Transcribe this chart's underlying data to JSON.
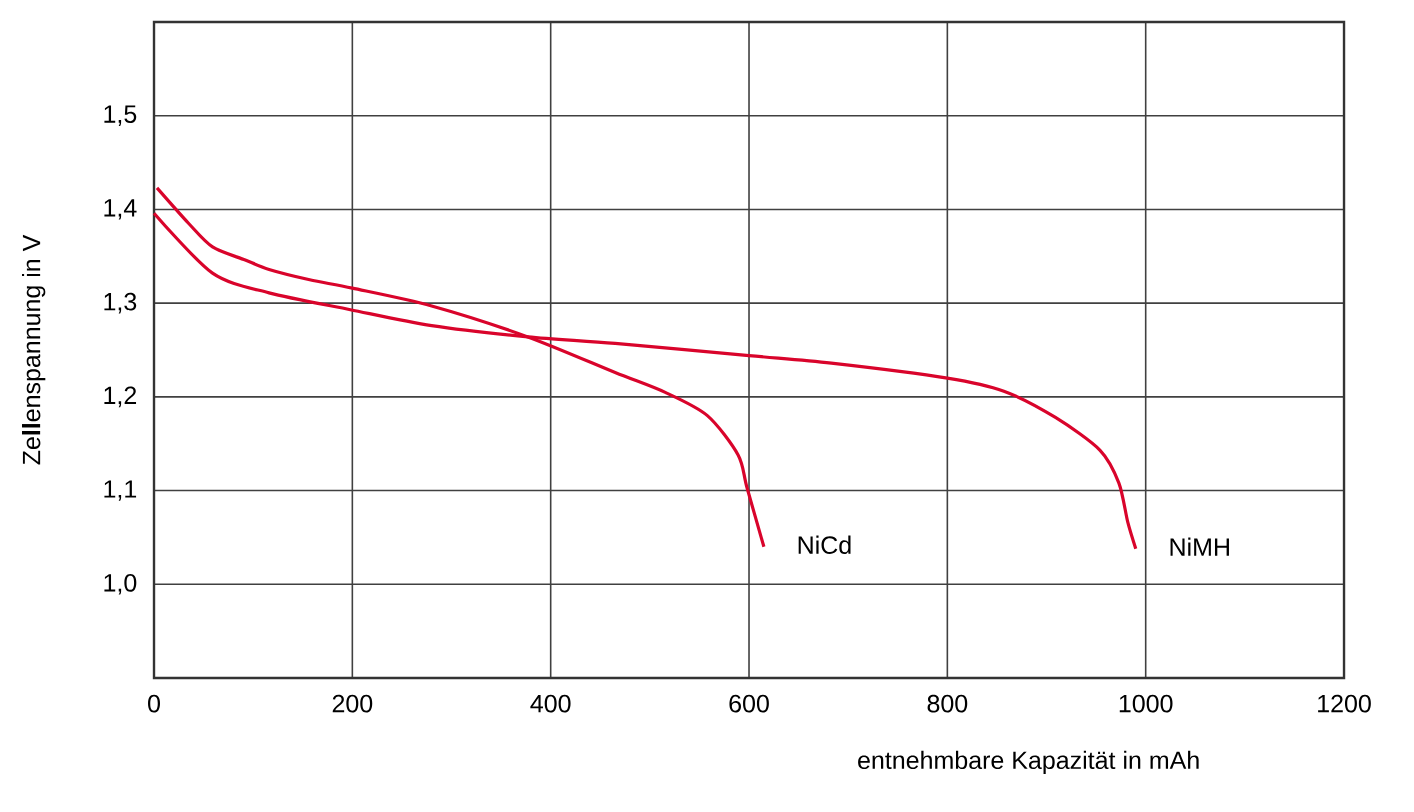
{
  "chart_data": {
    "type": "line",
    "xlabel": "entnehmbare Kapazität in mAh",
    "ylabel": "Ze**ll**enspannung in V",
    "xlim": [
      0,
      1200
    ],
    "ylim": [
      0.9,
      1.6
    ],
    "xticks": [
      0,
      200,
      400,
      600,
      800,
      1000,
      1200
    ],
    "yticks": [
      {
        "value": 1.0,
        "label": "1,0"
      },
      {
        "value": 1.1,
        "label": "1,1"
      },
      {
        "value": 1.2,
        "label": "1,2"
      },
      {
        "value": 1.3,
        "label": "1,3"
      },
      {
        "value": 1.4,
        "label": "1,4"
      },
      {
        "value": 1.5,
        "label": "1,5"
      }
    ],
    "grid": true,
    "legend": false,
    "marker": "none",
    "line_style": "solid",
    "series": [
      {
        "name": "NiCd",
        "color": "#d9042b",
        "x": [
          3,
          35,
          59,
          92,
          116,
          157,
          200,
          280,
          377,
          465,
          515,
          558,
          589,
          598,
          615
        ],
        "values": [
          1.423,
          1.385,
          1.36,
          1.346,
          1.336,
          1.325,
          1.316,
          1.297,
          1.264,
          1.226,
          1.205,
          1.18,
          1.138,
          1.103,
          1.04
        ]
      },
      {
        "name": "NiMH",
        "color": "#d9042b",
        "x": [
          0,
          59,
          116,
          198,
          280,
          377,
          465,
          600,
          683,
          800,
          857,
          909,
          954,
          973,
          982,
          990
        ],
        "values": [
          1.396,
          1.332,
          1.311,
          1.293,
          1.276,
          1.264,
          1.257,
          1.244,
          1.236,
          1.22,
          1.206,
          1.178,
          1.143,
          1.108,
          1.066,
          1.038
        ]
      }
    ]
  }
}
